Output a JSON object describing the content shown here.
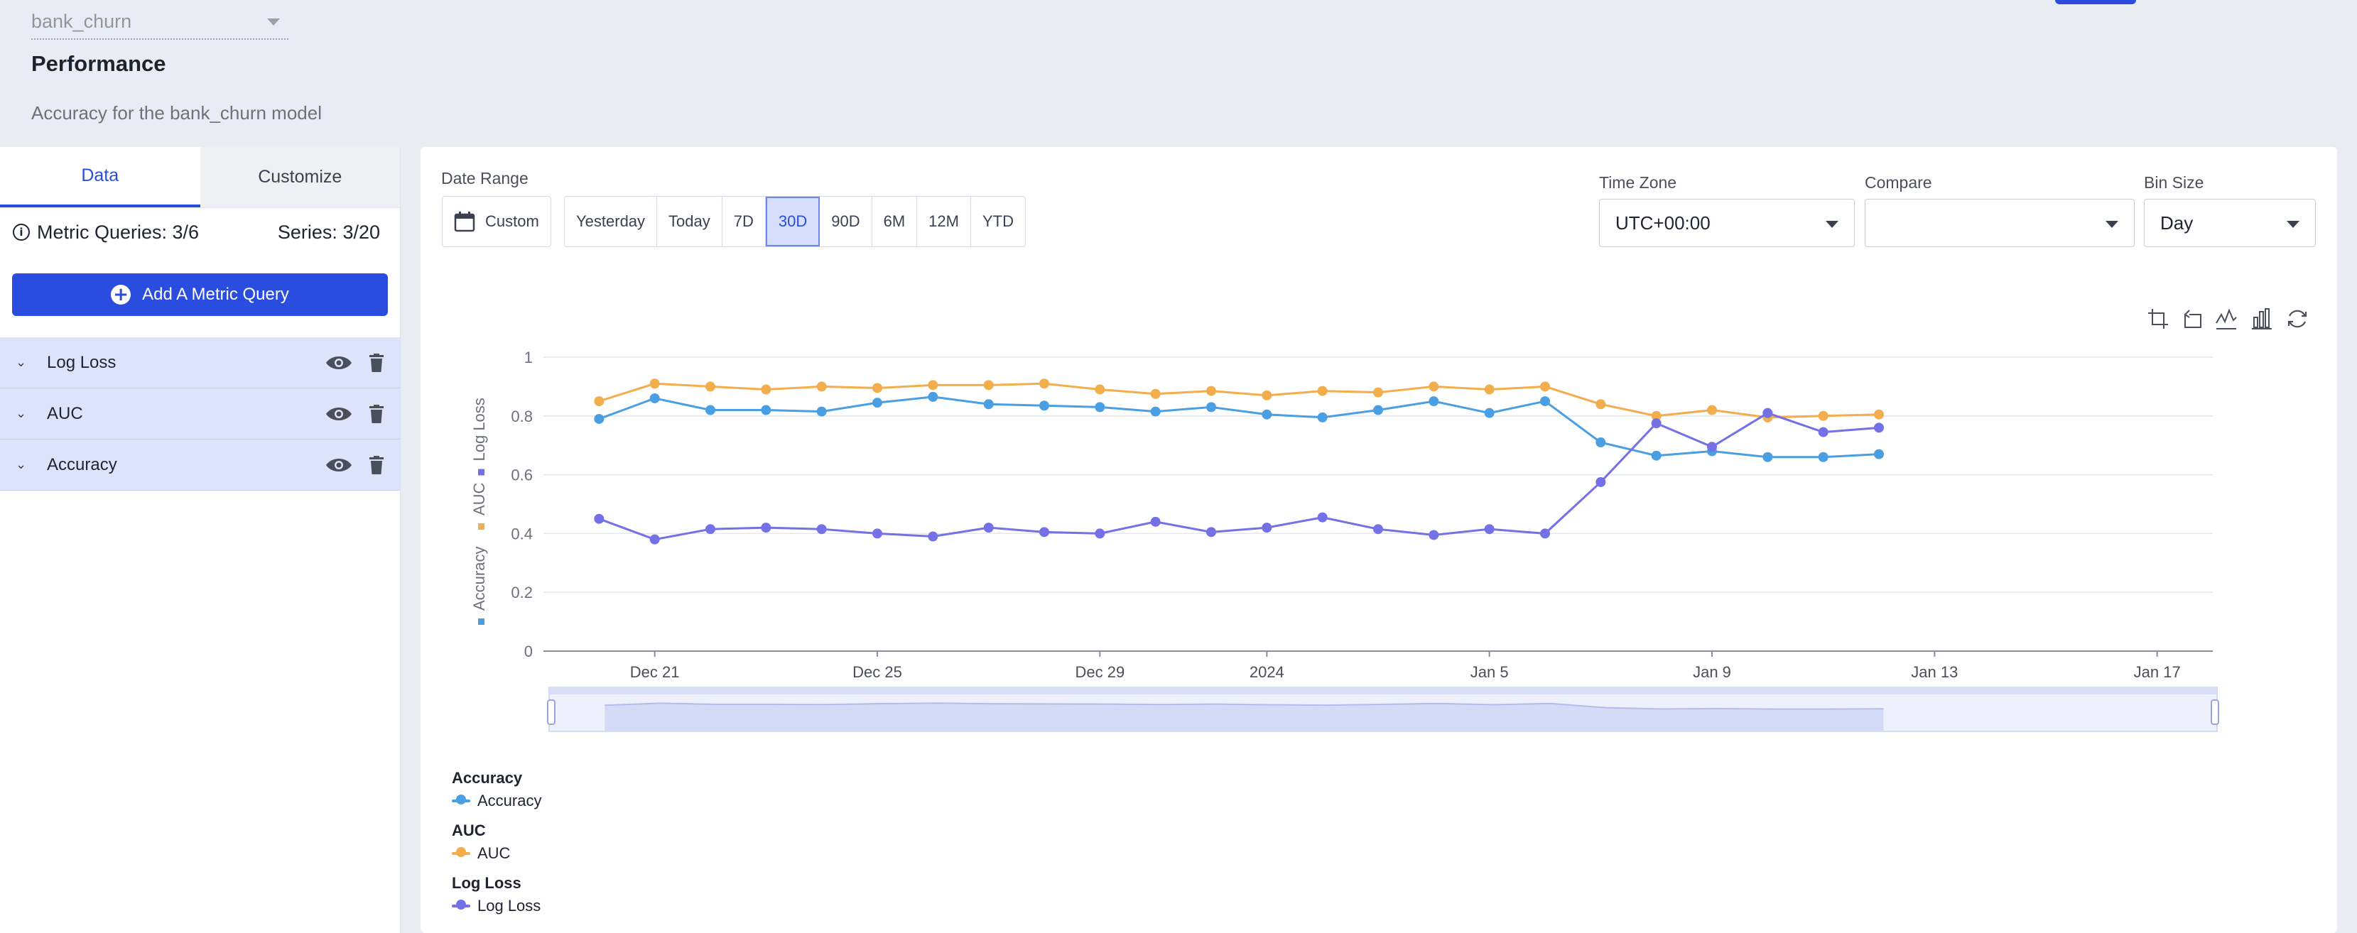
{
  "header": {
    "model_select": "bank_churn",
    "title": "Performance",
    "subtitle": "Accuracy for the bank_churn model"
  },
  "sidebar": {
    "tabs": [
      {
        "label": "Data",
        "active": true
      },
      {
        "label": "Customize",
        "active": false
      }
    ],
    "metric_queries": "Metric Queries: 3/6",
    "series_count": "Series: 3/20",
    "add_button": "Add A Metric Query",
    "queries": [
      {
        "label": "Log Loss"
      },
      {
        "label": "AUC"
      },
      {
        "label": "Accuracy"
      }
    ]
  },
  "controls": {
    "date_range_label": "Date Range",
    "custom_label": "Custom",
    "ranges": [
      "Yesterday",
      "Today",
      "7D",
      "30D",
      "90D",
      "6M",
      "12M",
      "YTD"
    ],
    "active_range": "30D",
    "time_zone_label": "Time Zone",
    "time_zone_value": "UTC+00:00",
    "compare_label": "Compare",
    "compare_value": "",
    "bin_size_label": "Bin Size",
    "bin_size_value": "Day"
  },
  "toolbar_icons": [
    "zoom-select-icon",
    "zoom-reset-icon",
    "line-chart-icon",
    "bar-chart-icon",
    "refresh-icon"
  ],
  "colors": {
    "accuracy": "#4a9fe3",
    "auc": "#f2ad4c",
    "log_loss": "#7470e6",
    "accent": "#2a4de0"
  },
  "chart_data": {
    "type": "line",
    "ylabel_parts": [
      "Accuracy",
      "AUC",
      "Log Loss"
    ],
    "ylim": [
      0,
      1
    ],
    "y_ticks": [
      "0",
      "0.2",
      "0.4",
      "0.6",
      "0.8",
      "1"
    ],
    "x_tick_labels": [
      "Dec 21",
      "Dec 25",
      "Dec 29",
      "2024",
      "Jan 5",
      "Jan 9",
      "Jan 13",
      "Jan 17"
    ],
    "x_range": [
      "2023-12-19",
      "2024-01-18"
    ],
    "grid": true,
    "legend_position": "bottom-left",
    "x": [
      "2023-12-20",
      "2023-12-21",
      "2023-12-22",
      "2023-12-23",
      "2023-12-24",
      "2023-12-25",
      "2023-12-26",
      "2023-12-27",
      "2023-12-28",
      "2023-12-29",
      "2023-12-30",
      "2023-12-31",
      "2024-01-01",
      "2024-01-02",
      "2024-01-03",
      "2024-01-04",
      "2024-01-05",
      "2024-01-06",
      "2024-01-07",
      "2024-01-08",
      "2024-01-09",
      "2024-01-10",
      "2024-01-11",
      "2024-01-12"
    ],
    "series": [
      {
        "name": "Accuracy",
        "group": "Accuracy",
        "color": "#4a9fe3",
        "values": [
          0.79,
          0.86,
          0.82,
          0.82,
          0.815,
          0.845,
          0.865,
          0.84,
          0.835,
          0.83,
          0.815,
          0.83,
          0.805,
          0.795,
          0.82,
          0.85,
          0.81,
          0.85,
          0.71,
          0.665,
          0.68,
          0.66,
          0.66,
          0.67
        ]
      },
      {
        "name": "AUC",
        "group": "AUC",
        "color": "#f2ad4c",
        "values": [
          0.85,
          0.91,
          0.9,
          0.89,
          0.9,
          0.895,
          0.905,
          0.905,
          0.91,
          0.89,
          0.875,
          0.885,
          0.87,
          0.885,
          0.88,
          0.9,
          0.89,
          0.9,
          0.84,
          0.8,
          0.82,
          0.795,
          0.8,
          0.805
        ]
      },
      {
        "name": "Log Loss",
        "group": "Log Loss",
        "color": "#7470e6",
        "values": [
          0.45,
          0.38,
          0.415,
          0.42,
          0.415,
          0.4,
          0.39,
          0.42,
          0.405,
          0.4,
          0.44,
          0.405,
          0.42,
          0.455,
          0.415,
          0.395,
          0.415,
          0.4,
          0.575,
          0.775,
          0.695,
          0.81,
          0.745,
          0.76
        ]
      }
    ]
  }
}
